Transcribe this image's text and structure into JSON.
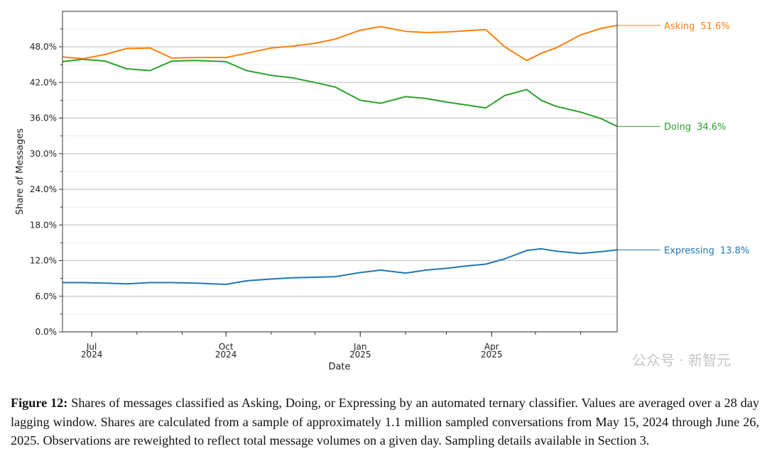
{
  "chart_data": {
    "type": "line",
    "xlabel": "Date",
    "ylabel": "Share of Messages",
    "ylim": [
      0,
      52.5
    ],
    "xlim": [
      "2024-06-11",
      "2025-06-26"
    ],
    "yticks": [
      "0.0%",
      "6.0%",
      "12.0%",
      "18.0%",
      "24.0%",
      "30.0%",
      "36.0%",
      "42.0%",
      "48.0%"
    ],
    "ytick_values": [
      0,
      6,
      12,
      18,
      24,
      30,
      36,
      42,
      48
    ],
    "xticks": [
      {
        "date": "2024-07-01",
        "label": "Jul",
        "year": "2024"
      },
      {
        "date": "2024-10-01",
        "label": "Oct",
        "year": "2024"
      },
      {
        "date": "2025-01-01",
        "label": "Jan",
        "year": "2025"
      },
      {
        "date": "2025-04-01",
        "label": "Apr",
        "year": "2025"
      }
    ],
    "grid": true,
    "x": [
      "2024-06-11",
      "2024-06-25",
      "2024-07-10",
      "2024-07-25",
      "2024-08-10",
      "2024-08-25",
      "2024-09-10",
      "2024-10-01",
      "2024-10-15",
      "2024-11-01",
      "2024-11-15",
      "2024-12-01",
      "2024-12-15",
      "2025-01-01",
      "2025-01-15",
      "2025-02-01",
      "2025-02-15",
      "2025-03-01",
      "2025-03-15",
      "2025-03-28",
      "2025-04-10",
      "2025-04-25",
      "2025-05-05",
      "2025-05-15",
      "2025-06-01",
      "2025-06-15",
      "2025-06-26"
    ],
    "series": [
      {
        "name": "Asking",
        "end_label": "51.6%",
        "color": "#ff7f0e",
        "values": [
          46.3,
          46.0,
          46.7,
          47.7,
          47.8,
          46.1,
          46.2,
          46.2,
          46.9,
          47.8,
          48.1,
          48.6,
          49.3,
          50.8,
          51.4,
          50.6,
          50.4,
          50.5,
          50.7,
          50.9,
          48.0,
          45.7,
          46.9,
          47.8,
          50.0,
          51.1,
          51.6
        ]
      },
      {
        "name": "Doing",
        "end_label": "34.6%",
        "color": "#2ca02c",
        "values": [
          45.5,
          45.9,
          45.6,
          44.3,
          44.0,
          45.6,
          45.7,
          45.5,
          44.0,
          43.2,
          42.8,
          42.0,
          41.2,
          39.0,
          38.5,
          39.6,
          39.3,
          38.7,
          38.2,
          37.7,
          39.8,
          40.8,
          39.0,
          38.0,
          37.0,
          35.9,
          34.6
        ]
      },
      {
        "name": "Expressing",
        "end_label": "13.8%",
        "color": "#1f77b4",
        "values": [
          8.3,
          8.3,
          8.2,
          8.1,
          8.3,
          8.3,
          8.2,
          8.0,
          8.6,
          8.9,
          9.1,
          9.2,
          9.3,
          10.0,
          10.4,
          9.9,
          10.4,
          10.7,
          11.1,
          11.4,
          12.3,
          13.7,
          14.0,
          13.6,
          13.2,
          13.5,
          13.8
        ]
      }
    ]
  },
  "caption": {
    "label": "Figure 12:",
    "text": " Shares of messages classified as Asking, Doing, or Expressing by an automated ternary classifier. Values are averaged over a 28 day lagging window. Shares are calculated from a sample of approximately 1.1 million sampled conversations from May 15, 2024 through June 26, 2025. Observations are reweighted to reflect total message volumes on a given day. Sampling details available in Section 3."
  },
  "watermark": "公众号 · 新智元"
}
